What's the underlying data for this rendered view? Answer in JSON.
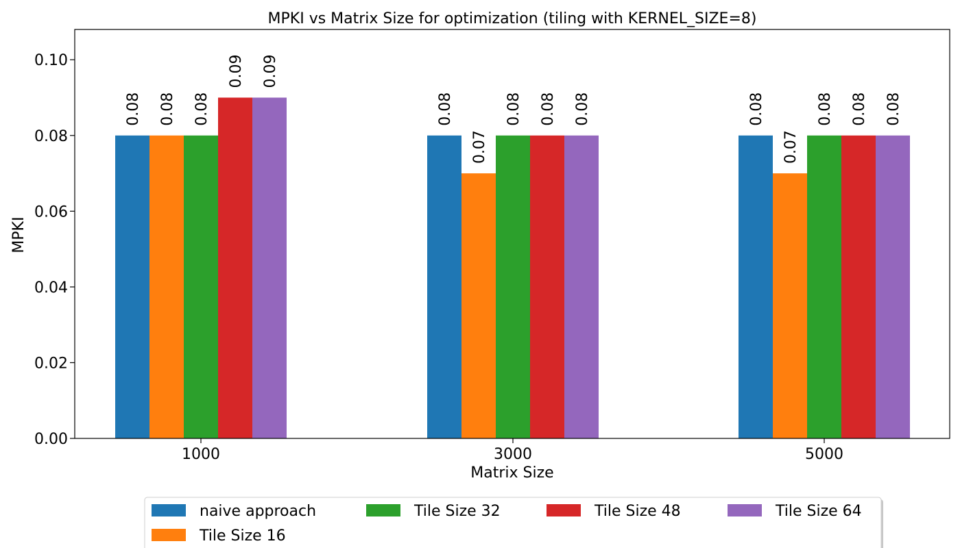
{
  "chart_data": {
    "type": "bar",
    "title": "MPKI vs Matrix Size for optimization (tiling with KERNEL_SIZE=8)",
    "xlabel": "Matrix Size",
    "ylabel": "MPKI",
    "categories": [
      "1000",
      "3000",
      "5000"
    ],
    "ylim": [
      0,
      0.108
    ],
    "yticks": [
      "0.00",
      "0.02",
      "0.04",
      "0.06",
      "0.08",
      "0.10"
    ],
    "ytick_values": [
      0.0,
      0.02,
      0.04,
      0.06,
      0.08,
      0.1
    ],
    "grid": false,
    "legend_position": "bottom-center",
    "series": [
      {
        "name": "naive approach",
        "color": "#1f77b4",
        "values": [
          0.08,
          0.08,
          0.08
        ],
        "labels": [
          "0.08",
          "0.08",
          "0.08"
        ]
      },
      {
        "name": "Tile Size 16",
        "color": "#ff7f0e",
        "values": [
          0.08,
          0.07,
          0.07
        ],
        "labels": [
          "0.08",
          "0.07",
          "0.07"
        ]
      },
      {
        "name": "Tile Size 32",
        "color": "#2ca02c",
        "values": [
          0.08,
          0.08,
          0.08
        ],
        "labels": [
          "0.08",
          "0.08",
          "0.08"
        ]
      },
      {
        "name": "Tile Size 48",
        "color": "#d62728",
        "values": [
          0.09,
          0.08,
          0.08
        ],
        "labels": [
          "0.09",
          "0.08",
          "0.08"
        ]
      },
      {
        "name": "Tile Size 64",
        "color": "#9467bd",
        "values": [
          0.09,
          0.08,
          0.08
        ],
        "labels": [
          "0.09",
          "0.08",
          "0.08"
        ]
      }
    ]
  }
}
